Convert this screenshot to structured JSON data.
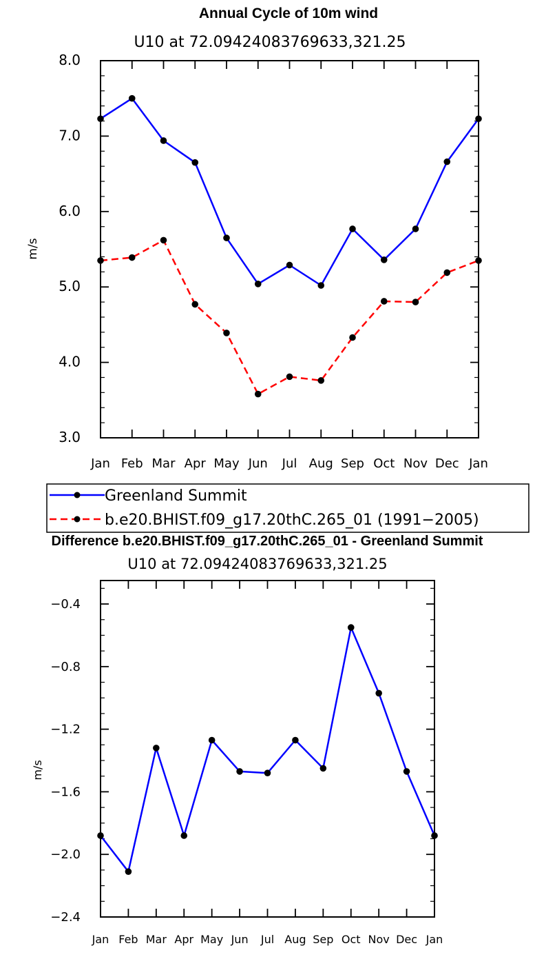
{
  "chart_data": [
    {
      "type": "line",
      "title": "Annual Cycle of 10m wind",
      "subtitle": "U10  at  72.09424083769633,321.25",
      "xlabel": "",
      "ylabel": "m/s",
      "categories": [
        "Jan",
        "Feb",
        "Mar",
        "Apr",
        "May",
        "Jun",
        "Jul",
        "Aug",
        "Sep",
        "Oct",
        "Nov",
        "Dec",
        "Jan"
      ],
      "ylim": [
        3.0,
        8.0
      ],
      "yticks": [
        3.0,
        4.0,
        5.0,
        6.0,
        7.0,
        8.0
      ],
      "ytick_labels": [
        "3.0",
        "4.0",
        "5.0",
        "6.0",
        "7.0",
        "8.0"
      ],
      "series": [
        {
          "name": "Greenland Summit",
          "color": "#0000ff",
          "style": "solid",
          "values": [
            7.23,
            7.5,
            6.94,
            6.65,
            5.65,
            5.04,
            5.29,
            5.02,
            5.77,
            5.36,
            5.77,
            6.66,
            7.23
          ]
        },
        {
          "name": "b.e20.BHIST.f09_g17.20thC.265_01 (1991−2005)",
          "color": "#ff0000",
          "style": "dashed",
          "values": [
            5.35,
            5.39,
            5.62,
            4.77,
            4.39,
            3.58,
            3.81,
            3.76,
            4.33,
            4.81,
            4.8,
            5.19,
            5.35
          ]
        }
      ],
      "legend": "below"
    },
    {
      "type": "line",
      "title": "Difference b.e20.BHIST.f09_g17.20thC.265_01 - Greenland Summit",
      "subtitle": "U10  at  72.09424083769633,321.25",
      "xlabel": "",
      "ylabel": "m/s",
      "categories": [
        "Jan",
        "Feb",
        "Mar",
        "Apr",
        "May",
        "Jun",
        "Jul",
        "Aug",
        "Sep",
        "Oct",
        "Nov",
        "Dec",
        "Jan"
      ],
      "ylim": [
        -2.4,
        -0.25
      ],
      "yticks": [
        -2.4,
        -2.0,
        -1.6,
        -1.2,
        -0.8,
        -0.4
      ],
      "ytick_labels": [
        "−2.4",
        "−2.0",
        "−1.6",
        "−1.2",
        "−0.8",
        "−0.4"
      ],
      "series": [
        {
          "name": "Difference",
          "color": "#0000ff",
          "style": "solid",
          "values": [
            -1.88,
            -2.11,
            -1.32,
            -1.88,
            -1.27,
            -1.47,
            -1.48,
            -1.27,
            -1.45,
            -0.55,
            -0.97,
            -1.47,
            -1.88
          ]
        }
      ]
    }
  ],
  "colors": {
    "marker": "#000000",
    "frame": "#000000"
  }
}
